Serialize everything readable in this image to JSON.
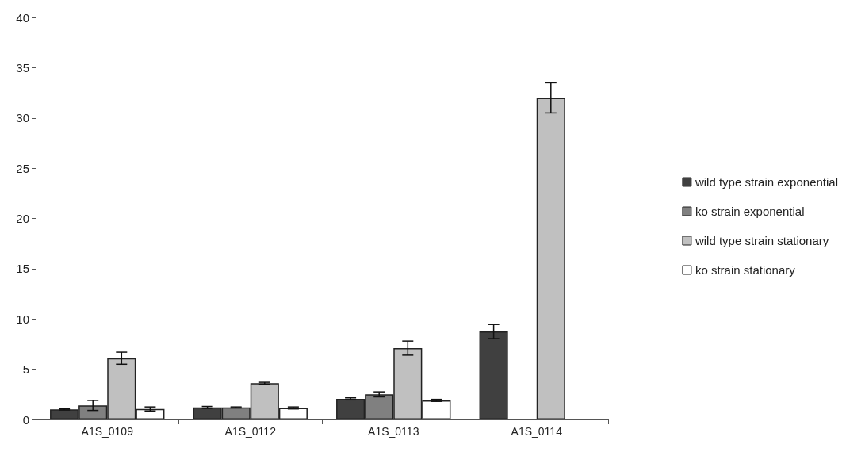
{
  "chart_data": {
    "type": "bar",
    "categories": [
      "A1S_0109",
      "A1S_0112",
      "A1S_0113",
      "A1S_0114"
    ],
    "series": [
      {
        "name": "wild type strain exponential",
        "color": "#404040",
        "values": [
          1.0,
          1.2,
          2.05,
          8.75
        ],
        "errors": [
          0.05,
          0.1,
          0.1,
          0.7
        ]
      },
      {
        "name": "ko strain exponential",
        "color": "#808080",
        "values": [
          1.4,
          1.2,
          2.5,
          null
        ],
        "errors": [
          0.5,
          0.05,
          0.25,
          null
        ]
      },
      {
        "name": "wild type strain stationary",
        "color": "#c0c0c0",
        "values": [
          6.1,
          3.6,
          7.1,
          32.0
        ],
        "errors": [
          0.6,
          0.1,
          0.7,
          1.5
        ]
      },
      {
        "name": "ko strain stationary",
        "color": "#ffffff",
        "values": [
          1.05,
          1.15,
          1.9,
          null
        ],
        "errors": [
          0.2,
          0.1,
          0.1,
          null
        ]
      }
    ],
    "ylim": [
      0,
      40
    ],
    "yticks": [
      0,
      5,
      10,
      15,
      20,
      25,
      30,
      35,
      40
    ],
    "grid": false,
    "legend": "right"
  }
}
